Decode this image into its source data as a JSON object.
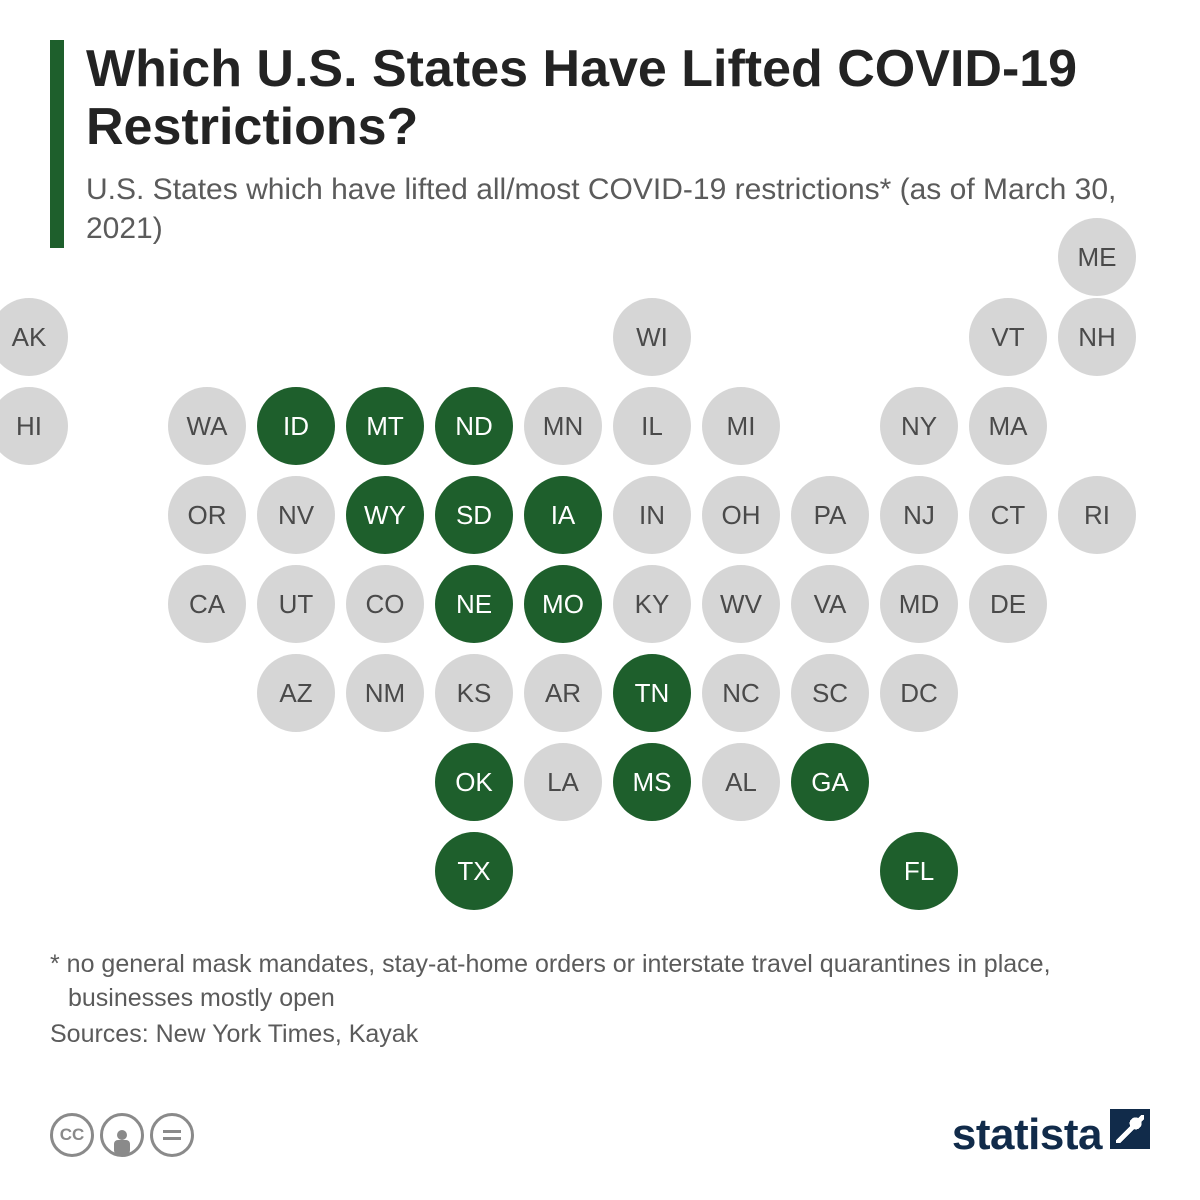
{
  "type": "infographic-tilemap",
  "header": {
    "accent_color": "#1e5f2c",
    "title": "Which U.S. States Have Lifted COVID-19 Restrictions?",
    "title_color": "#232323",
    "title_fontsize": 52,
    "subtitle": "U.S. States which have lifted all/most COVID-19 restrictions* (as of March 30, 2021)",
    "subtitle_color": "#5b5b5b",
    "subtitle_fontsize": 30
  },
  "grid": {
    "circle_diameter": 78,
    "col_step": 89,
    "row_step": 89,
    "label_fontsize": 26,
    "colors": {
      "lifted_bg": "#1e5f2c",
      "lifted_text": "#ffffff",
      "not_lifted_bg": "#d6d6d6",
      "not_lifted_text": "#4a4a4a"
    },
    "states": [
      {
        "abbr": "ME",
        "row": 0,
        "col": 12,
        "lifted": false
      },
      {
        "abbr": "AK",
        "row": 1,
        "col": 0,
        "lifted": false
      },
      {
        "abbr": "WI",
        "row": 1,
        "col": 7,
        "lifted": false
      },
      {
        "abbr": "VT",
        "row": 1,
        "col": 11,
        "lifted": false
      },
      {
        "abbr": "NH",
        "row": 1,
        "col": 12,
        "lifted": false
      },
      {
        "abbr": "HI",
        "row": 2,
        "col": 0,
        "lifted": false
      },
      {
        "abbr": "WA",
        "row": 2,
        "col": 2,
        "lifted": false
      },
      {
        "abbr": "ID",
        "row": 2,
        "col": 3,
        "lifted": true
      },
      {
        "abbr": "MT",
        "row": 2,
        "col": 4,
        "lifted": true
      },
      {
        "abbr": "ND",
        "row": 2,
        "col": 5,
        "lifted": true
      },
      {
        "abbr": "MN",
        "row": 2,
        "col": 6,
        "lifted": false
      },
      {
        "abbr": "IL",
        "row": 2,
        "col": 7,
        "lifted": false
      },
      {
        "abbr": "MI",
        "row": 2,
        "col": 8,
        "lifted": false
      },
      {
        "abbr": "NY",
        "row": 2,
        "col": 10,
        "lifted": false
      },
      {
        "abbr": "MA",
        "row": 2,
        "col": 11,
        "lifted": false
      },
      {
        "abbr": "OR",
        "row": 3,
        "col": 2,
        "lifted": false
      },
      {
        "abbr": "NV",
        "row": 3,
        "col": 3,
        "lifted": false
      },
      {
        "abbr": "WY",
        "row": 3,
        "col": 4,
        "lifted": true
      },
      {
        "abbr": "SD",
        "row": 3,
        "col": 5,
        "lifted": true
      },
      {
        "abbr": "IA",
        "row": 3,
        "col": 6,
        "lifted": true
      },
      {
        "abbr": "IN",
        "row": 3,
        "col": 7,
        "lifted": false
      },
      {
        "abbr": "OH",
        "row": 3,
        "col": 8,
        "lifted": false
      },
      {
        "abbr": "PA",
        "row": 3,
        "col": 9,
        "lifted": false
      },
      {
        "abbr": "NJ",
        "row": 3,
        "col": 10,
        "lifted": false
      },
      {
        "abbr": "CT",
        "row": 3,
        "col": 11,
        "lifted": false
      },
      {
        "abbr": "RI",
        "row": 3,
        "col": 12,
        "lifted": false
      },
      {
        "abbr": "CA",
        "row": 4,
        "col": 2,
        "lifted": false
      },
      {
        "abbr": "UT",
        "row": 4,
        "col": 3,
        "lifted": false
      },
      {
        "abbr": "CO",
        "row": 4,
        "col": 4,
        "lifted": false
      },
      {
        "abbr": "NE",
        "row": 4,
        "col": 5,
        "lifted": true
      },
      {
        "abbr": "MO",
        "row": 4,
        "col": 6,
        "lifted": true
      },
      {
        "abbr": "KY",
        "row": 4,
        "col": 7,
        "lifted": false
      },
      {
        "abbr": "WV",
        "row": 4,
        "col": 8,
        "lifted": false
      },
      {
        "abbr": "VA",
        "row": 4,
        "col": 9,
        "lifted": false
      },
      {
        "abbr": "MD",
        "row": 4,
        "col": 10,
        "lifted": false
      },
      {
        "abbr": "DE",
        "row": 4,
        "col": 11,
        "lifted": false
      },
      {
        "abbr": "AZ",
        "row": 5,
        "col": 3,
        "lifted": false
      },
      {
        "abbr": "NM",
        "row": 5,
        "col": 4,
        "lifted": false
      },
      {
        "abbr": "KS",
        "row": 5,
        "col": 5,
        "lifted": false
      },
      {
        "abbr": "AR",
        "row": 5,
        "col": 6,
        "lifted": false
      },
      {
        "abbr": "TN",
        "row": 5,
        "col": 7,
        "lifted": true
      },
      {
        "abbr": "NC",
        "row": 5,
        "col": 8,
        "lifted": false
      },
      {
        "abbr": "SC",
        "row": 5,
        "col": 9,
        "lifted": false
      },
      {
        "abbr": "DC",
        "row": 5,
        "col": 10,
        "lifted": false
      },
      {
        "abbr": "OK",
        "row": 6,
        "col": 5,
        "lifted": true
      },
      {
        "abbr": "LA",
        "row": 6,
        "col": 6,
        "lifted": false
      },
      {
        "abbr": "MS",
        "row": 6,
        "col": 7,
        "lifted": true
      },
      {
        "abbr": "AL",
        "row": 6,
        "col": 8,
        "lifted": false
      },
      {
        "abbr": "GA",
        "row": 6,
        "col": 9,
        "lifted": true
      },
      {
        "abbr": "TX",
        "row": 7,
        "col": 5,
        "lifted": true
      },
      {
        "abbr": "FL",
        "row": 7,
        "col": 10,
        "lifted": true
      }
    ]
  },
  "footnote": "* no general mask mandates, stay-at-home orders or interstate travel quarantines in place, businesses mostly open",
  "sources": "Sources: New York Times, Kayak",
  "footer": {
    "logo_text": "statista",
    "logo_color": "#112b4a"
  }
}
